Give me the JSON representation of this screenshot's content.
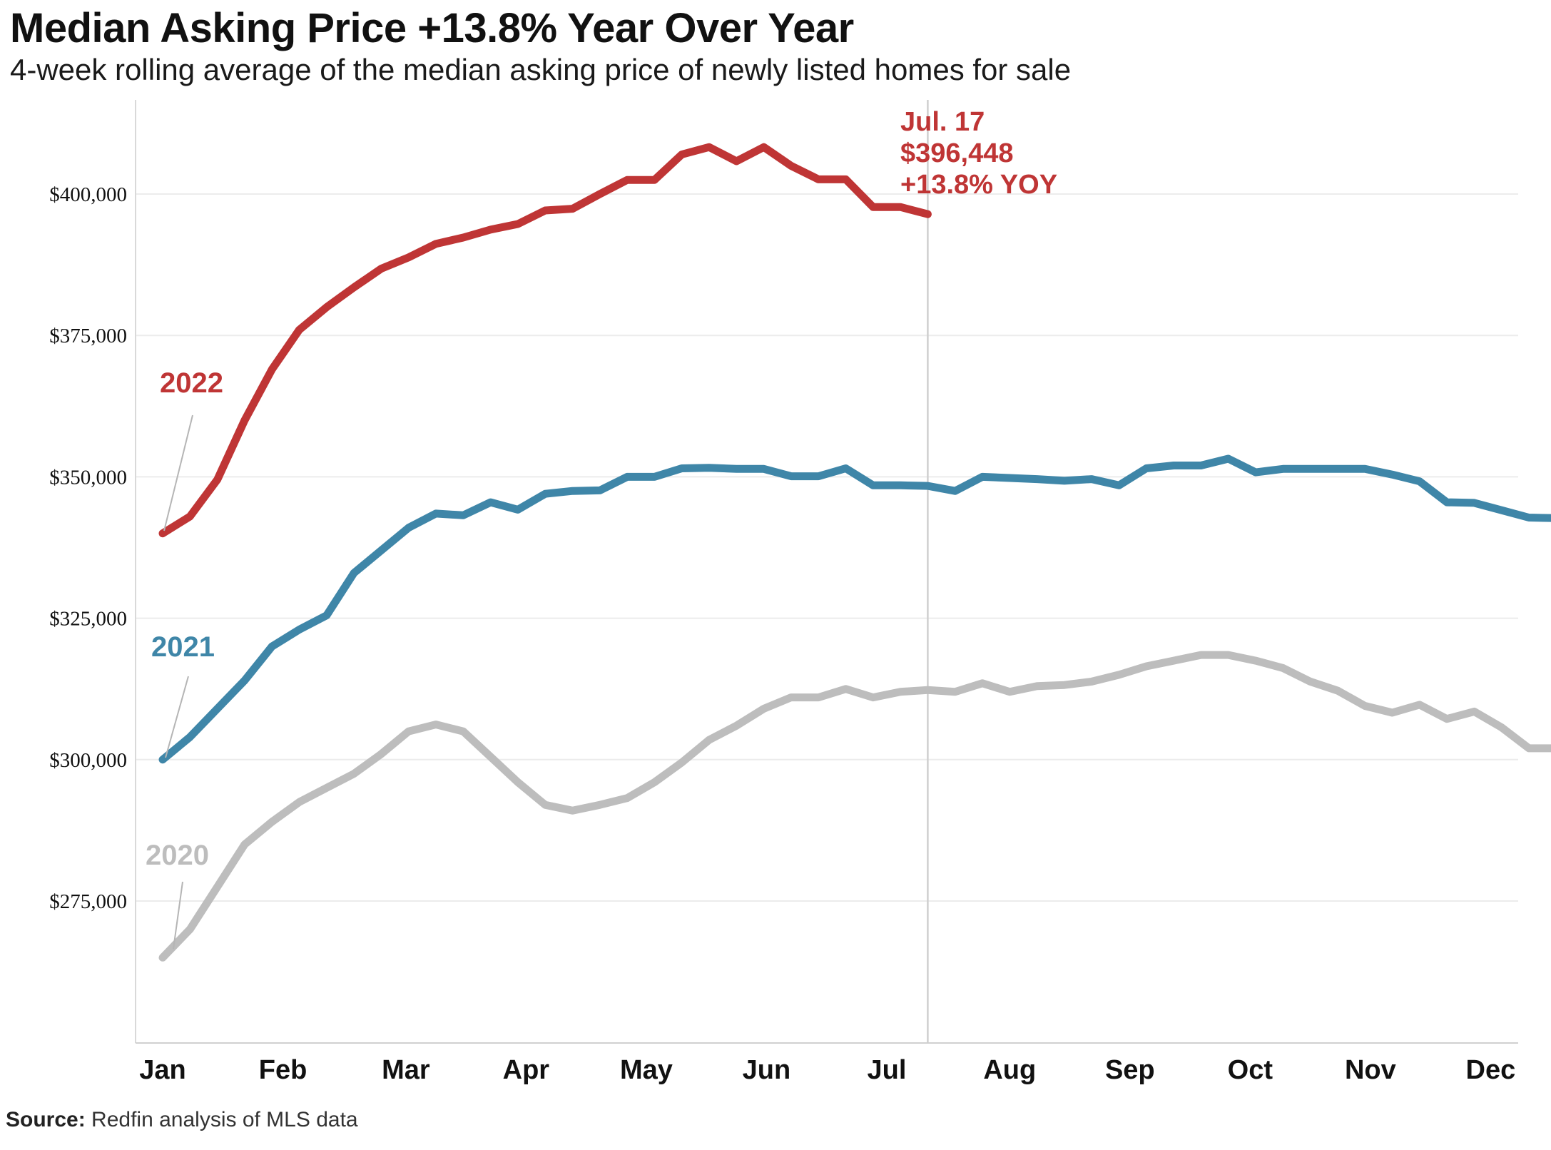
{
  "chart_data": {
    "type": "line",
    "title": "Median Asking Price +13.8% Year Over Year",
    "subtitle": "4-week rolling average of the median asking price of newly listed homes for sale",
    "source_label": "Source:",
    "source_text": "Redfin analysis of MLS data",
    "x_axis": {
      "ticks": [
        {
          "label": "Jan",
          "week": 0
        },
        {
          "label": "Feb",
          "week": 4.4
        },
        {
          "label": "Mar",
          "week": 8.9
        },
        {
          "label": "Apr",
          "week": 13.3
        },
        {
          "label": "May",
          "week": 17.7
        },
        {
          "label": "Jun",
          "week": 22.1
        },
        {
          "label": "Jul",
          "week": 26.5
        },
        {
          "label": "Aug",
          "week": 31.0
        },
        {
          "label": "Sep",
          "week": 35.4
        },
        {
          "label": "Oct",
          "week": 39.8
        },
        {
          "label": "Nov",
          "week": 44.2
        },
        {
          "label": "Dec",
          "week": 48.6
        }
      ],
      "range": [
        0,
        52
      ]
    },
    "y_axis": {
      "ticks": [
        {
          "label": "$400,000",
          "value": 400000
        },
        {
          "label": "$375,000",
          "value": 375000
        },
        {
          "label": "$350,000",
          "value": 350000
        },
        {
          "label": "$325,000",
          "value": 325000
        },
        {
          "label": "$300,000",
          "value": 300000
        },
        {
          "label": "$275,000",
          "value": 275000
        }
      ],
      "range": [
        251000,
        416000
      ]
    },
    "grid": true,
    "series": [
      {
        "name": "2020",
        "color": "#bdbdbd",
        "points": [
          [
            0.0,
            265000
          ],
          [
            1.0,
            270000
          ],
          [
            2.0,
            277500
          ],
          [
            3.0,
            285000
          ],
          [
            4.0,
            289000
          ],
          [
            5.0,
            292500
          ],
          [
            6.0,
            295000
          ],
          [
            7.0,
            297500
          ],
          [
            8.0,
            301000
          ],
          [
            9.0,
            305000
          ],
          [
            10.0,
            306200
          ],
          [
            11.0,
            305000
          ],
          [
            12.0,
            300500
          ],
          [
            13.0,
            296000
          ],
          [
            14.0,
            292000
          ],
          [
            15.0,
            291000
          ],
          [
            16.0,
            292000
          ],
          [
            17.0,
            293200
          ],
          [
            18.0,
            296000
          ],
          [
            19.0,
            299500
          ],
          [
            20.0,
            303500
          ],
          [
            21.0,
            306000
          ],
          [
            22.0,
            309000
          ],
          [
            23.0,
            311000
          ],
          [
            24.0,
            311000
          ],
          [
            25.0,
            312500
          ],
          [
            26.0,
            311000
          ],
          [
            27.0,
            312000
          ],
          [
            28.0,
            312300
          ],
          [
            29.0,
            312000
          ],
          [
            30.0,
            313500
          ],
          [
            31.0,
            312000
          ],
          [
            32.0,
            313000
          ],
          [
            33.0,
            313200
          ],
          [
            34.0,
            313800
          ],
          [
            35.0,
            315000
          ],
          [
            36.0,
            316500
          ],
          [
            37.0,
            317500
          ],
          [
            38.0,
            318500
          ],
          [
            39.0,
            318500
          ],
          [
            40.0,
            317500
          ],
          [
            41.0,
            316200
          ],
          [
            42.0,
            313800
          ],
          [
            43.0,
            312200
          ],
          [
            44.0,
            309500
          ],
          [
            45.0,
            308300
          ],
          [
            46.0,
            309700
          ],
          [
            47.0,
            307200
          ],
          [
            48.0,
            308500
          ],
          [
            49.0,
            305700
          ],
          [
            50.0,
            302000
          ],
          [
            51.0,
            302000
          ]
        ]
      },
      {
        "name": "2021",
        "color": "#3f86a8",
        "points": [
          [
            0.0,
            300000
          ],
          [
            1.0,
            304000
          ],
          [
            2.0,
            309000
          ],
          [
            3.0,
            314000
          ],
          [
            4.0,
            320000
          ],
          [
            5.0,
            323000
          ],
          [
            6.0,
            325500
          ],
          [
            7.0,
            333000
          ],
          [
            8.0,
            337000
          ],
          [
            9.0,
            341000
          ],
          [
            10.0,
            343500
          ],
          [
            11.0,
            343200
          ],
          [
            12.0,
            345500
          ],
          [
            13.0,
            344200
          ],
          [
            14.0,
            347000
          ],
          [
            15.0,
            347500
          ],
          [
            16.0,
            347600
          ],
          [
            17.0,
            350000
          ],
          [
            18.0,
            350000
          ],
          [
            19.0,
            351500
          ],
          [
            20.0,
            351600
          ],
          [
            21.0,
            351400
          ],
          [
            22.0,
            351400
          ],
          [
            23.0,
            350100
          ],
          [
            24.0,
            350100
          ],
          [
            25.0,
            351500
          ],
          [
            26.0,
            348500
          ],
          [
            27.0,
            348500
          ],
          [
            28.0,
            348400
          ],
          [
            29.0,
            347500
          ],
          [
            30.0,
            350000
          ],
          [
            31.0,
            349800
          ],
          [
            32.0,
            349600
          ],
          [
            33.0,
            349300
          ],
          [
            34.0,
            349600
          ],
          [
            35.0,
            348500
          ],
          [
            36.0,
            351500
          ],
          [
            37.0,
            352000
          ],
          [
            38.0,
            352000
          ],
          [
            39.0,
            353200
          ],
          [
            40.0,
            350800
          ],
          [
            41.0,
            351400
          ],
          [
            42.0,
            351400
          ],
          [
            43.0,
            351400
          ],
          [
            44.0,
            351400
          ],
          [
            45.0,
            350400
          ],
          [
            46.0,
            349200
          ],
          [
            47.0,
            345500
          ],
          [
            48.0,
            345400
          ],
          [
            49.0,
            344100
          ],
          [
            50.0,
            342800
          ],
          [
            51.0,
            342700
          ]
        ]
      },
      {
        "name": "2022",
        "color": "#bf3535",
        "points": [
          [
            0.0,
            340000
          ],
          [
            1.0,
            343000
          ],
          [
            2.0,
            349500
          ],
          [
            3.0,
            360000
          ],
          [
            4.0,
            369000
          ],
          [
            5.0,
            376000
          ],
          [
            6.0,
            380000
          ],
          [
            7.0,
            383500
          ],
          [
            8.0,
            386800
          ],
          [
            9.0,
            388800
          ],
          [
            10.0,
            391200
          ],
          [
            11.0,
            392300
          ],
          [
            12.0,
            393700
          ],
          [
            13.0,
            394700
          ],
          [
            14.0,
            397100
          ],
          [
            15.0,
            397400
          ],
          [
            16.0,
            400000
          ],
          [
            17.0,
            402500
          ],
          [
            18.0,
            402500
          ],
          [
            19.0,
            407000
          ],
          [
            20.0,
            408300
          ],
          [
            21.0,
            405800
          ],
          [
            22.0,
            408300
          ],
          [
            23.0,
            405000
          ],
          [
            24.0,
            402600
          ],
          [
            25.0,
            402600
          ],
          [
            26.0,
            397700
          ],
          [
            27.0,
            397700
          ],
          [
            28.0,
            396448
          ]
        ]
      }
    ],
    "marker_line": {
      "week": 28
    },
    "annotation": {
      "date": "Jul. 17",
      "value": "$396,448",
      "change": "+13.8% YOY",
      "color": "#bf3535"
    }
  }
}
